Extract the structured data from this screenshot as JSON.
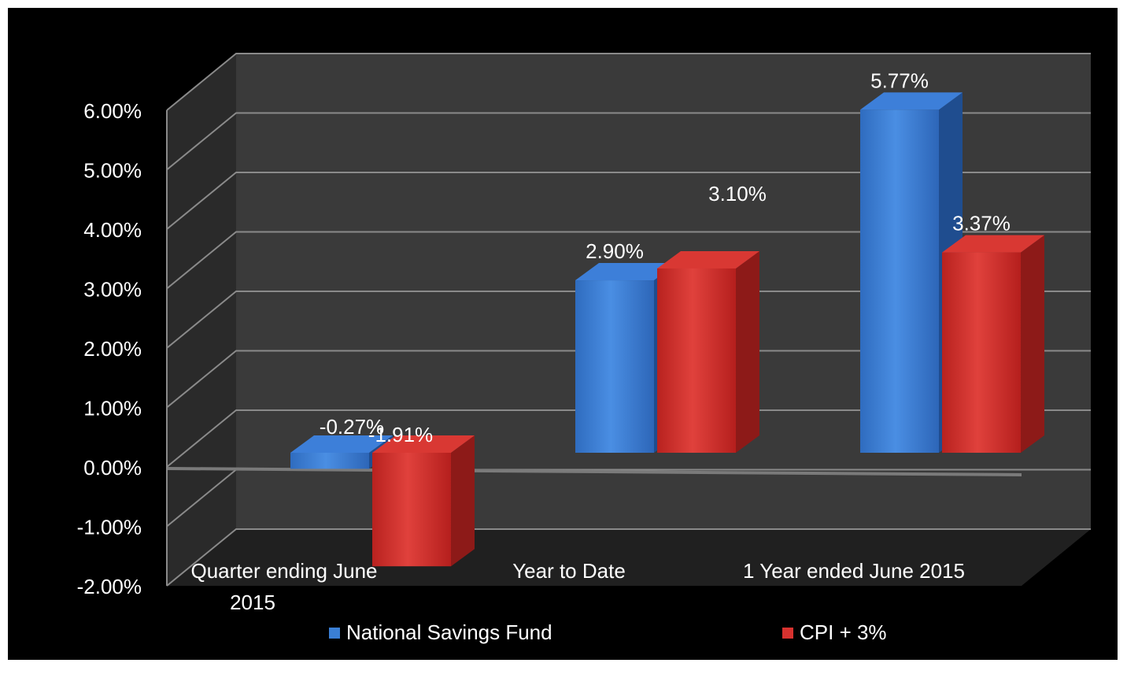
{
  "chart_data": {
    "type": "bar",
    "style": "3d-clustered-column",
    "categories": [
      [
        "Quarter ending June",
        "2015"
      ],
      [
        "Year to Date"
      ],
      [
        "1 Year ended June 2015"
      ]
    ],
    "series": [
      {
        "name": "National Savings Fund",
        "values": [
          -0.27,
          2.9,
          5.77
        ],
        "labels": [
          "-0.27%",
          "2.90%",
          "5.77%"
        ],
        "color": "#3a7fd5"
      },
      {
        "name": "CPI + 3%",
        "values": [
          -1.91,
          3.1,
          3.37
        ],
        "labels": [
          "-1.91%",
          "3.10%",
          "3.37%"
        ],
        "color": "#d8322f"
      }
    ],
    "yticks": [
      "6.00%",
      "5.00%",
      "4.00%",
      "3.00%",
      "2.00%",
      "1.00%",
      "0.00%",
      "-1.00%",
      "-2.00%"
    ],
    "ylim": [
      -2,
      6
    ],
    "grid": true,
    "legend_position": "bottom",
    "background": "#000000",
    "text_color": "#ffffff"
  }
}
